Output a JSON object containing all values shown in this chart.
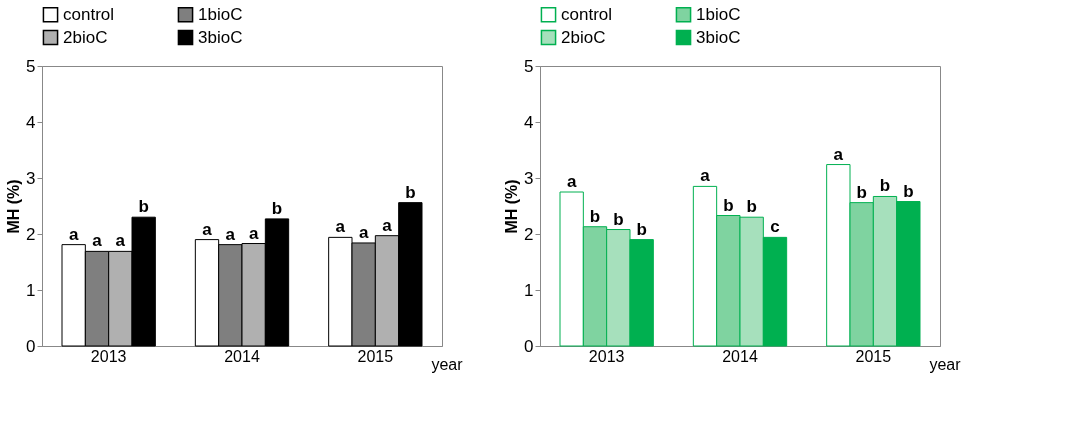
{
  "chart_data": [
    {
      "type": "bar",
      "xlabel": "year",
      "ylabel": "MH (%)",
      "categories": [
        "2013",
        "2014",
        "2015"
      ],
      "ylim": [
        0,
        5
      ],
      "yticks": [
        0,
        1,
        2,
        3,
        4,
        5
      ],
      "grid": false,
      "legend": "top",
      "series": [
        {
          "name": "control",
          "color": "#ffffff",
          "values": [
            1.81,
            1.9,
            1.94
          ],
          "value_labels": [
            "a",
            "a",
            "a"
          ]
        },
        {
          "name": "1bioC",
          "color": "#7f7f7f",
          "values": [
            1.69,
            1.81,
            1.84
          ],
          "value_labels": [
            "a",
            "a",
            "a"
          ]
        },
        {
          "name": "2bioC",
          "color": "#b0b0b0",
          "values": [
            1.69,
            1.83,
            1.97
          ],
          "value_labels": [
            "a",
            "a",
            "a"
          ]
        },
        {
          "name": "3bioC",
          "color": "#000000",
          "values": [
            2.3,
            2.27,
            2.56
          ],
          "value_labels": [
            "b",
            "b",
            "b"
          ]
        }
      ]
    },
    {
      "type": "bar",
      "xlabel": "year",
      "ylabel": "MH (%)",
      "categories": [
        "2013",
        "2014",
        "2015"
      ],
      "ylim": [
        0,
        5
      ],
      "yticks": [
        0,
        1,
        2,
        3,
        4,
        5
      ],
      "grid": false,
      "legend": "top",
      "series": [
        {
          "name": "control",
          "color": "#ffffff",
          "values": [
            2.75,
            2.85,
            3.24
          ],
          "value_labels": [
            "a",
            "a",
            "a"
          ]
        },
        {
          "name": "1bioC",
          "color": "#7fd3a0",
          "values": [
            2.13,
            2.33,
            2.56
          ],
          "value_labels": [
            "b",
            "b",
            "b"
          ]
        },
        {
          "name": "2bioC",
          "color": "#a6e0bc",
          "values": [
            2.08,
            2.3,
            2.67
          ],
          "value_labels": [
            "b",
            "b",
            "b"
          ]
        },
        {
          "name": "3bioC",
          "color": "#00b050",
          "values": [
            1.9,
            1.94,
            2.58
          ],
          "value_labels": [
            "b",
            "c",
            "b"
          ]
        }
      ]
    }
  ]
}
